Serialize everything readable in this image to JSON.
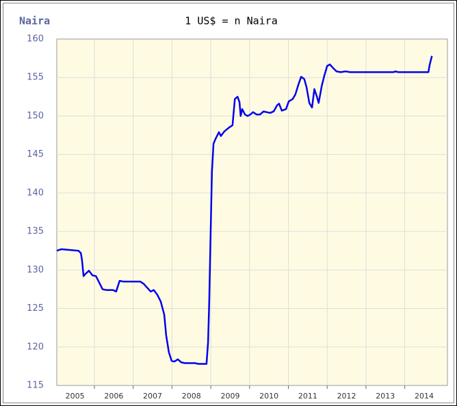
{
  "chart_data": {
    "type": "line",
    "label": "Naira",
    "title": "1 US$ = n Naira",
    "color": "#0000ee",
    "grid": true,
    "xlim": [
      2005.03,
      2015.1
    ],
    "ylim": [
      115,
      160
    ],
    "yticks": [
      115,
      120,
      125,
      130,
      135,
      140,
      145,
      150,
      155,
      160
    ],
    "xticks": [
      2005,
      2006,
      2007,
      2008,
      2009,
      2010,
      2011,
      2012,
      2013,
      2014
    ],
    "x": [
      2005.03,
      2005.15,
      2005.59,
      2005.65,
      2005.68,
      2005.72,
      2005.77,
      2005.86,
      2005.95,
      2006.04,
      2006.12,
      2006.21,
      2006.3,
      2006.48,
      2006.56,
      2006.65,
      2006.74,
      2007.18,
      2007.27,
      2007.36,
      2007.45,
      2007.53,
      2007.62,
      2007.71,
      2007.8,
      2007.85,
      2007.92,
      2007.99,
      2008.06,
      2008.15,
      2008.24,
      2008.33,
      2008.59,
      2008.68,
      2008.89,
      2008.93,
      2008.96,
      2009.0,
      2009.03,
      2009.07,
      2009.12,
      2009.21,
      2009.26,
      2009.35,
      2009.47,
      2009.56,
      2009.62,
      2009.69,
      2009.74,
      2009.77,
      2009.81,
      2009.88,
      2009.95,
      2010.02,
      2010.09,
      2010.18,
      2010.27,
      2010.36,
      2010.44,
      2010.53,
      2010.62,
      2010.71,
      2010.76,
      2010.83,
      2010.94,
      2011.01,
      2011.11,
      2011.18,
      2011.26,
      2011.33,
      2011.41,
      2011.47,
      2011.54,
      2011.61,
      2011.67,
      2011.73,
      2011.78,
      2011.86,
      2011.93,
      2012.0,
      2012.07,
      2012.14,
      2012.24,
      2012.35,
      2012.47,
      2012.59,
      2013.71,
      2013.76,
      2013.83,
      2014.61,
      2014.64,
      2014.7
    ],
    "values": [
      132.5,
      132.7,
      132.5,
      132.2,
      131.3,
      129.2,
      129.5,
      129.9,
      129.3,
      129.2,
      128.4,
      127.5,
      127.4,
      127.4,
      127.2,
      128.6,
      128.5,
      128.5,
      128.2,
      127.7,
      127.2,
      127.4,
      126.8,
      125.9,
      124.2,
      121.5,
      119.3,
      118.2,
      118.1,
      118.4,
      118.0,
      117.9,
      117.9,
      117.8,
      117.8,
      120.6,
      125.9,
      135.7,
      142.8,
      146.4,
      147.0,
      147.9,
      147.4,
      148.0,
      148.5,
      148.8,
      152.2,
      152.5,
      151.8,
      150.0,
      150.9,
      150.2,
      150.0,
      150.2,
      150.5,
      150.2,
      150.2,
      150.6,
      150.5,
      150.4,
      150.6,
      151.4,
      151.6,
      150.7,
      150.9,
      151.9,
      152.2,
      152.8,
      154.1,
      155.1,
      154.8,
      153.7,
      151.7,
      151.1,
      153.5,
      152.6,
      151.7,
      153.9,
      155.3,
      156.5,
      156.7,
      156.3,
      155.8,
      155.7,
      155.8,
      155.7,
      155.7,
      155.8,
      155.7,
      155.7,
      156.6,
      157.8
    ]
  }
}
